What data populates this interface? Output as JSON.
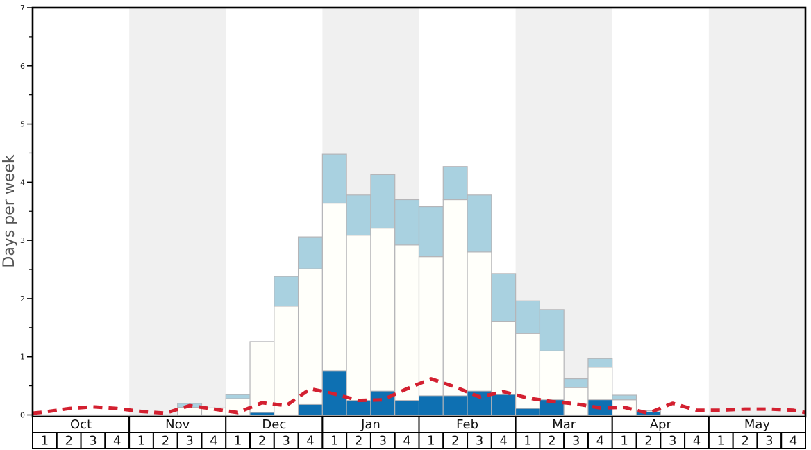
{
  "chart_data": {
    "type": "bar",
    "title": "",
    "ylabel": "Days per week",
    "ylim": [
      0,
      7
    ],
    "yticks": [
      "0",
      "1",
      "2",
      "3",
      "4",
      "5",
      "6",
      "7"
    ],
    "minor_tick_step": 0.5,
    "grid": false,
    "legend_position": "none",
    "months": [
      "Oct",
      "Nov",
      "Dec",
      "Jan",
      "Feb",
      "Mar",
      "Apr",
      "May"
    ],
    "shaded_months": [
      "Nov",
      "Jan",
      "Mar",
      "May"
    ],
    "week_labels": [
      "1",
      "2",
      "3",
      "4"
    ],
    "weeks_per_month": 4,
    "series": {
      "bar_total_top": {
        "description": "top of each stacked bar (white body + light blue cap), days per week",
        "values": [
          0,
          0,
          0,
          0,
          0,
          0,
          0.2,
          0.12,
          0.35,
          1.26,
          2.38,
          3.06,
          4.48,
          3.78,
          4.13,
          3.7,
          3.58,
          4.27,
          3.78,
          2.43,
          1.96,
          1.81,
          0.62,
          0.97,
          0.34,
          0.07,
          0,
          0,
          0,
          0,
          0,
          0
        ]
      },
      "light_blue_cap_bottom": {
        "description": "level where the light blue upper cap begins (equals total when no cap)",
        "values": [
          0,
          0,
          0,
          0,
          0,
          0,
          0.13,
          0.12,
          0.28,
          1.26,
          1.87,
          2.51,
          3.64,
          3.09,
          3.21,
          2.92,
          2.72,
          3.7,
          2.8,
          1.61,
          1.4,
          1.1,
          0.47,
          0.82,
          0.26,
          0.07,
          0,
          0,
          0,
          0,
          0,
          0
        ]
      },
      "dark_blue_bar": {
        "description": "dark blue bar height at the base of each week",
        "values": [
          0,
          0,
          0,
          0,
          0,
          0,
          0,
          0,
          0,
          0.04,
          0,
          0.18,
          0.76,
          0.25,
          0.41,
          0.25,
          0.33,
          0.33,
          0.41,
          0.35,
          0.11,
          0.26,
          0,
          0.26,
          0,
          0.05,
          0,
          0,
          0,
          0,
          0,
          0
        ]
      },
      "red_dashed_line": {
        "description": "red dashed overlay line, one value per week",
        "values": [
          0.05,
          0.11,
          0.14,
          0.11,
          0.06,
          0.03,
          0.16,
          0.1,
          0.04,
          0.21,
          0.16,
          0.45,
          0.36,
          0.25,
          0.26,
          0.45,
          0.62,
          0.48,
          0.31,
          0.4,
          0.29,
          0.23,
          0.19,
          0.12,
          0.13,
          0.03,
          0.2,
          0.08,
          0.08,
          0.1,
          0.1,
          0.08
        ],
        "edge_start": 0.03,
        "edge_end": 0.04
      }
    },
    "colors": {
      "background": "#ffffff",
      "month_band": "#f0f0f0",
      "bar_white": "#fffffa",
      "bar_light_blue": "#a9d1e0",
      "bar_dark_blue": "#0e70b2",
      "bar_border": "#b5b5b8",
      "red_line": "#d32030",
      "frame": "#000000",
      "baseline": "#9a9a9a",
      "tick_text": "#1a1a1a",
      "ylabel_text": "#555555"
    }
  }
}
